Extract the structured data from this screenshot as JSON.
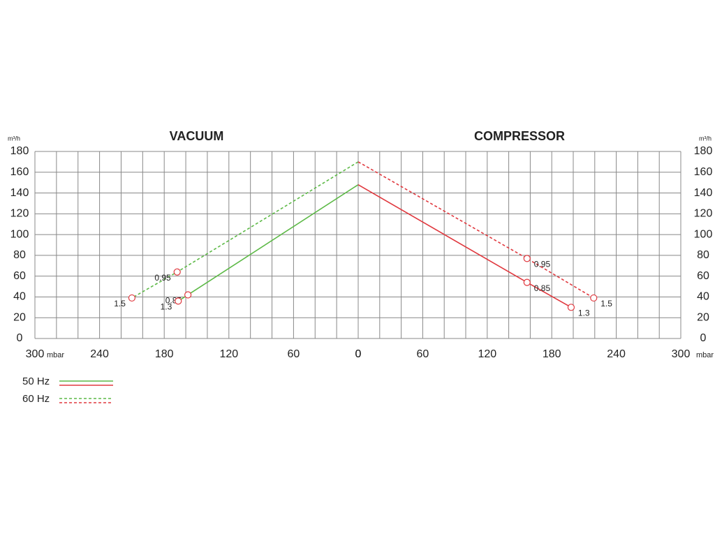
{
  "chart_data": [
    {
      "type": "line",
      "title": "VACUUM",
      "xlabel": "mbar",
      "ylabel": "m³/h",
      "yaxis_side": "left",
      "label_side": "left",
      "xlim": [
        300,
        0
      ],
      "xticks": [
        300,
        240,
        180,
        120,
        60,
        0
      ],
      "xgrid": [
        0,
        20,
        40,
        60,
        80,
        100,
        120,
        140,
        160,
        180,
        200,
        220,
        240,
        260,
        280,
        300
      ],
      "ylim": [
        0,
        180
      ],
      "yticks": [
        0,
        20,
        40,
        60,
        80,
        100,
        120,
        140,
        160,
        180
      ],
      "grid": true,
      "series": [
        {
          "name": "50 Hz",
          "color": "#5cb946",
          "dashed": false,
          "x": [
            0,
            158,
            167
          ],
          "values": [
            148,
            42,
            36
          ],
          "point_labels": [
            null,
            "0.85",
            "1.3"
          ]
        },
        {
          "name": "60 Hz",
          "color": "#5cb946",
          "dashed": true,
          "x": [
            0,
            168,
            210
          ],
          "values": [
            170,
            64,
            39
          ],
          "point_labels": [
            null,
            "0.95",
            "1.5"
          ]
        }
      ]
    },
    {
      "type": "line",
      "title": "COMPRESSOR",
      "xlabel": "mbar",
      "ylabel": "m³/h",
      "yaxis_side": "right",
      "label_side": "right",
      "xlim": [
        0,
        300
      ],
      "xticks": [
        0,
        60,
        120,
        180,
        240,
        300
      ],
      "xgrid": [
        0,
        20,
        40,
        60,
        80,
        100,
        120,
        140,
        160,
        180,
        200,
        220,
        240,
        260,
        280,
        300
      ],
      "ylim": [
        0,
        180
      ],
      "yticks": [
        0,
        20,
        40,
        60,
        80,
        100,
        120,
        140,
        160,
        180
      ],
      "grid": true,
      "series": [
        {
          "color": "#e0383e",
          "dashed": false,
          "x": [
            0,
            157,
            198
          ],
          "values": [
            148,
            54,
            30
          ],
          "point_labels": [
            null,
            "0.85",
            "1.3"
          ]
        },
        {
          "color": "#e0383e",
          "dashed": true,
          "x": [
            0,
            157,
            219
          ],
          "values": [
            170,
            77,
            39
          ],
          "point_labels": [
            null,
            "0.95",
            "1.5"
          ]
        }
      ]
    }
  ]
}
